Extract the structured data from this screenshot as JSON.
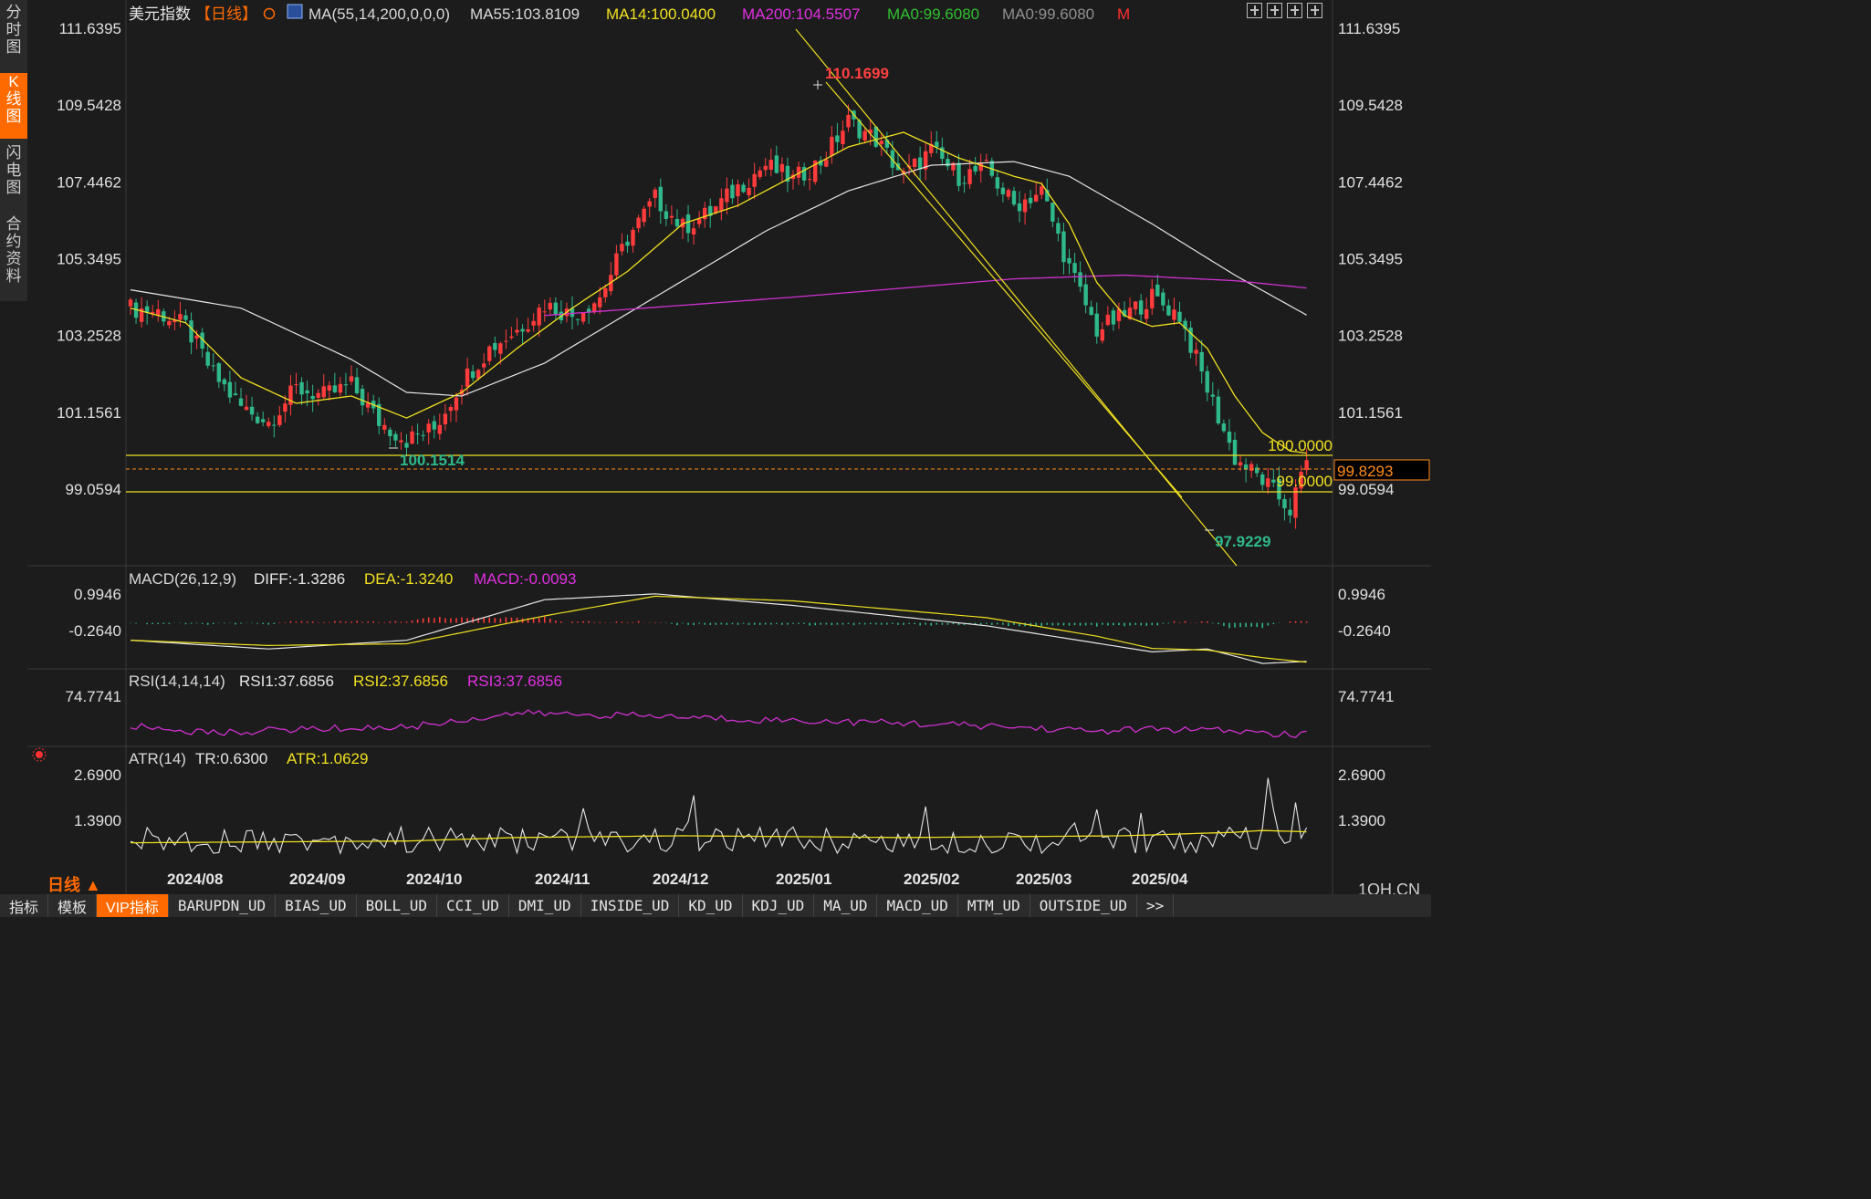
{
  "sidebar": {
    "tabs": [
      {
        "label": "分时图",
        "active": false
      },
      {
        "label": "K线图",
        "active": true
      },
      {
        "label": "闪电图",
        "active": false
      },
      {
        "label": "合约资料",
        "active": false
      }
    ]
  },
  "header": {
    "instrument": "美元指数",
    "period_tag": "【日线】",
    "segments": [
      {
        "text": "MA(55,14,200,0,0,0)",
        "color": "#d8d8d8"
      },
      {
        "text": "MA55:103.8109",
        "color": "#d8d8d8"
      },
      {
        "text": "MA14:100.0400",
        "color": "#f0e020"
      },
      {
        "text": "MA200:104.5507",
        "color": "#e030e0"
      },
      {
        "text": "MA0:99.6080",
        "color": "#30c030"
      },
      {
        "text": "MA0:99.6080",
        "color": "#909090"
      },
      {
        "text": "M",
        "color": "#ff3030"
      }
    ]
  },
  "price_axis": {
    "ticks": [
      "111.6395",
      "109.5428",
      "107.4462",
      "105.3495",
      "103.2528",
      "101.1561",
      "99.0594"
    ],
    "values": [
      111.6395,
      109.5428,
      107.4462,
      105.3495,
      103.2528,
      101.1561,
      99.0594
    ]
  },
  "annotations": {
    "high": "110.1699",
    "low_left": "100.1514",
    "low_right": "97.9229",
    "level_upper": "100.0000",
    "level_lower": "99.0000",
    "last_price": "99.8293"
  },
  "x_axis_labels": [
    "2024/08",
    "2024/09",
    "2024/10",
    "2024/11",
    "2024/12",
    "2025/01",
    "2025/02",
    "2025/03",
    "2025/04"
  ],
  "macd": {
    "title": "MACD(26,12,9)",
    "diff_label": "DIFF:-1.3286",
    "dea_label": "DEA:-1.3240",
    "macd_label": "MACD:-0.0093",
    "ticks": [
      "0.9946",
      "-0.2640"
    ],
    "values": [
      0.9946,
      -0.264
    ]
  },
  "rsi": {
    "title": "RSI(14,14,14)",
    "rsi1": "RSI1:37.6856",
    "rsi2": "RSI2:37.6856",
    "rsi3": "RSI3:37.6856",
    "ticks": [
      "74.7741"
    ],
    "values": [
      74.7741
    ]
  },
  "atr": {
    "title": "ATR(14)",
    "tr": "TR:0.6300",
    "atr_label": "ATR:1.0629",
    "ticks": [
      "2.6900",
      "1.3900"
    ],
    "values": [
      2.69,
      1.39
    ]
  },
  "period_label": "日线 ▲",
  "brand": "1QH.CN",
  "bottom_tabs": [
    {
      "label": "指标",
      "active": false
    },
    {
      "label": "模板",
      "active": false
    },
    {
      "label": "VIP指标",
      "active": true
    },
    {
      "label": "BARUPDN_UD",
      "active": false
    },
    {
      "label": "BIAS_UD",
      "active": false
    },
    {
      "label": "BOLL_UD",
      "active": false
    },
    {
      "label": "CCI_UD",
      "active": false
    },
    {
      "label": "DMI_UD",
      "active": false
    },
    {
      "label": "INSIDE_UD",
      "active": false
    },
    {
      "label": "KD_UD",
      "active": false
    },
    {
      "label": "KDJ_UD",
      "active": false
    },
    {
      "label": "MA_UD",
      "active": false
    },
    {
      "label": "MACD_UD",
      "active": false
    },
    {
      "label": "MTM_UD",
      "active": false
    },
    {
      "label": "OUTSIDE_UD",
      "active": false
    },
    {
      "label": ">>",
      "active": false
    }
  ],
  "colors": {
    "up": "#ff3b3b",
    "down": "#2fb88a",
    "ma14": "#f0e020",
    "ma55": "#e6e6e6",
    "ma200": "#d030d0",
    "level": "#f0e020",
    "accent": "#ff6a00"
  },
  "chart_data": {
    "type": "candlestick",
    "x_range": [
      "2024-07-24",
      "2025-04-24"
    ],
    "y_range": [
      97.5,
      111.9
    ],
    "close_path": [
      [
        0,
        104.0
      ],
      [
        5,
        103.9
      ],
      [
        10,
        103.5
      ],
      [
        15,
        102.2
      ],
      [
        20,
        101.3
      ],
      [
        25,
        100.9
      ],
      [
        30,
        101.8
      ],
      [
        35,
        101.6
      ],
      [
        40,
        101.9
      ],
      [
        45,
        100.9
      ],
      [
        50,
        100.4
      ],
      [
        55,
        100.7
      ],
      [
        60,
        102.0
      ],
      [
        65,
        102.9
      ],
      [
        70,
        103.4
      ],
      [
        75,
        104.1
      ],
      [
        80,
        103.8
      ],
      [
        85,
        104.3
      ],
      [
        90,
        105.9
      ],
      [
        95,
        107.0
      ],
      [
        100,
        106.2
      ],
      [
        105,
        106.6
      ],
      [
        110,
        107.3
      ],
      [
        115,
        107.9
      ],
      [
        120,
        107.5
      ],
      [
        125,
        108.0
      ],
      [
        130,
        109.1
      ],
      [
        135,
        108.6
      ],
      [
        140,
        107.6
      ],
      [
        145,
        108.3
      ],
      [
        150,
        107.6
      ],
      [
        155,
        107.8
      ],
      [
        160,
        106.8
      ],
      [
        165,
        107.2
      ],
      [
        170,
        105.1
      ],
      [
        175,
        103.4
      ],
      [
        180,
        103.8
      ],
      [
        185,
        104.3
      ],
      [
        190,
        103.8
      ],
      [
        195,
        101.8
      ],
      [
        200,
        99.9
      ],
      [
        205,
        99.3
      ],
      [
        210,
        98.5
      ],
      [
        213,
        99.8
      ]
    ],
    "ma14_path": [
      [
        0,
        104.0
      ],
      [
        10,
        103.6
      ],
      [
        20,
        102.1
      ],
      [
        30,
        101.4
      ],
      [
        40,
        101.6
      ],
      [
        50,
        101.0
      ],
      [
        60,
        101.7
      ],
      [
        70,
        102.9
      ],
      [
        80,
        104.0
      ],
      [
        90,
        105.0
      ],
      [
        100,
        106.3
      ],
      [
        110,
        106.8
      ],
      [
        120,
        107.6
      ],
      [
        130,
        108.4
      ],
      [
        140,
        108.8
      ],
      [
        150,
        108.1
      ],
      [
        160,
        107.6
      ],
      [
        165,
        107.4
      ],
      [
        170,
        106.3
      ],
      [
        175,
        104.7
      ],
      [
        180,
        103.8
      ],
      [
        185,
        103.5
      ],
      [
        190,
        103.6
      ],
      [
        195,
        102.9
      ],
      [
        200,
        101.6
      ],
      [
        205,
        100.6
      ],
      [
        210,
        100.1
      ],
      [
        213,
        100.04
      ]
    ],
    "ma55_path": [
      [
        0,
        104.5
      ],
      [
        20,
        104.0
      ],
      [
        40,
        102.6
      ],
      [
        50,
        101.7
      ],
      [
        60,
        101.6
      ],
      [
        75,
        102.5
      ],
      [
        95,
        104.3
      ],
      [
        115,
        106.1
      ],
      [
        130,
        107.2
      ],
      [
        145,
        107.9
      ],
      [
        160,
        108.0
      ],
      [
        170,
        107.6
      ],
      [
        185,
        106.3
      ],
      [
        200,
        104.9
      ],
      [
        213,
        103.81
      ]
    ],
    "ma200_path": [
      [
        75,
        103.8
      ],
      [
        120,
        104.3
      ],
      [
        160,
        104.8
      ],
      [
        180,
        104.9
      ],
      [
        200,
        104.75
      ],
      [
        213,
        104.55
      ]
    ],
    "macd_diff_path": [
      [
        0,
        -0.6
      ],
      [
        25,
        -0.9
      ],
      [
        50,
        -0.6
      ],
      [
        75,
        0.8
      ],
      [
        95,
        1.0
      ],
      [
        120,
        0.6
      ],
      [
        155,
        -0.1
      ],
      [
        175,
        -0.7
      ],
      [
        185,
        -1.0
      ],
      [
        195,
        -0.9
      ],
      [
        205,
        -1.4
      ],
      [
        213,
        -1.3286
      ]
    ],
    "rsi_path": [
      [
        0,
        45
      ],
      [
        15,
        38
      ],
      [
        30,
        42
      ],
      [
        50,
        44
      ],
      [
        70,
        58
      ],
      [
        95,
        55
      ],
      [
        110,
        52
      ],
      [
        125,
        50
      ],
      [
        140,
        48
      ],
      [
        160,
        44
      ],
      [
        175,
        40
      ],
      [
        185,
        42
      ],
      [
        200,
        40
      ],
      [
        210,
        36
      ],
      [
        213,
        37.6856
      ]
    ],
    "atr_path": [
      [
        0,
        0.75
      ],
      [
        50,
        0.8
      ],
      [
        70,
        0.9
      ],
      [
        100,
        0.95
      ],
      [
        140,
        0.9
      ],
      [
        180,
        0.95
      ],
      [
        200,
        1.05
      ],
      [
        205,
        1.1
      ],
      [
        213,
        1.0629
      ]
    ]
  }
}
